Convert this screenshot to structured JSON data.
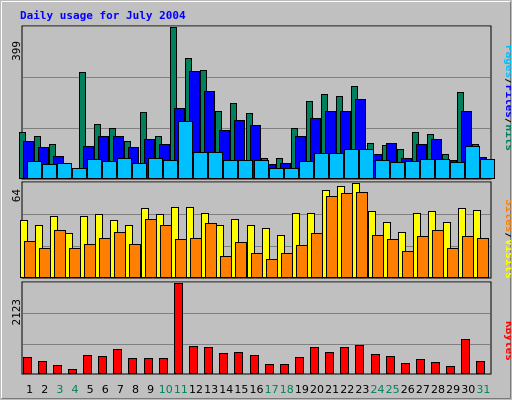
{
  "title": "Daily usage for July 2004",
  "colors": {
    "hits": "#00805c",
    "files": "#0000ff",
    "pages": "#00c0ff",
    "visits": "#ffff00",
    "sites": "#ff8000",
    "kbytes": "#ff0000",
    "weekend_day": "#00805c",
    "weekday_day": "#000000",
    "panel_bg": "#c0c0c0",
    "gridline": "#808080"
  },
  "chart_data": [
    {
      "type": "bar",
      "categories": [
        "1",
        "2",
        "3",
        "4",
        "5",
        "6",
        "7",
        "8",
        "9",
        "10",
        "11",
        "12",
        "13",
        "14",
        "15",
        "16",
        "17",
        "18",
        "19",
        "20",
        "21",
        "22",
        "23",
        "24",
        "25",
        "26",
        "27",
        "28",
        "29",
        "30",
        "31"
      ],
      "weekend_days": [
        3,
        4,
        10,
        11,
        17,
        18,
        24,
        25,
        31
      ],
      "ymax_label": "399",
      "ylim": [
        0,
        399
      ],
      "series": [
        {
          "name": "Hits",
          "values": [
            124,
            113,
            91,
            35,
            281,
            145,
            133,
            101,
            176,
            112,
            399,
            317,
            286,
            178,
            200,
            173,
            56,
            55,
            133,
            205,
            224,
            218,
            244,
            95,
            88,
            78,
            123,
            117,
            65,
            228,
            91
          ]
        },
        {
          "name": "Files",
          "values": [
            99,
            83,
            60,
            30,
            87,
            113,
            112,
            83,
            106,
            92,
            186,
            284,
            232,
            128,
            155,
            142,
            39,
            43,
            113,
            161,
            179,
            178,
            209,
            65,
            94,
            56,
            92,
            104,
            51,
            178,
            57
          ]
        },
        {
          "name": "Pages",
          "values": [
            48,
            40,
            42,
            29,
            53,
            48,
            56,
            43,
            54,
            51,
            152,
            70,
            70,
            49,
            51,
            50,
            30,
            30,
            47,
            68,
            69,
            79,
            80,
            49,
            45,
            46,
            53,
            53,
            44,
            87,
            53
          ]
        }
      ],
      "legend": [
        "Pages",
        "/",
        "Files",
        "/",
        "Hits"
      ]
    },
    {
      "type": "bar",
      "categories": [
        "1",
        "2",
        "3",
        "4",
        "5",
        "6",
        "7",
        "8",
        "9",
        "10",
        "11",
        "12",
        "13",
        "14",
        "15",
        "16",
        "17",
        "18",
        "19",
        "20",
        "21",
        "22",
        "23",
        "24",
        "25",
        "26",
        "27",
        "28",
        "29",
        "30",
        "31"
      ],
      "ymax_label": "64",
      "ylim": [
        0,
        64
      ],
      "series": [
        {
          "name": "Visits",
          "values": [
            39,
            36,
            42,
            30,
            42,
            43,
            39,
            36,
            47,
            43,
            48,
            48,
            44,
            36,
            40,
            36,
            34,
            29,
            44,
            44,
            59,
            62,
            64,
            45,
            38,
            31,
            44,
            45,
            38,
            47,
            46
          ]
        },
        {
          "name": "Sites",
          "values": [
            25,
            20,
            32,
            20,
            23,
            27,
            31,
            23,
            40,
            36,
            26,
            27,
            37,
            15,
            24,
            17,
            13,
            17,
            22,
            30,
            55,
            57,
            58,
            29,
            26,
            18,
            28,
            32,
            20,
            28,
            27
          ]
        }
      ],
      "legend": [
        "Sites",
        "/",
        "Visits"
      ]
    },
    {
      "type": "bar",
      "categories": [
        "1",
        "2",
        "3",
        "4",
        "5",
        "6",
        "7",
        "8",
        "9",
        "10",
        "11",
        "12",
        "13",
        "14",
        "15",
        "16",
        "17",
        "18",
        "19",
        "20",
        "21",
        "22",
        "23",
        "24",
        "25",
        "26",
        "27",
        "28",
        "29",
        "30",
        "31"
      ],
      "ymax_label": "2123",
      "ylim": [
        0,
        2123
      ],
      "series": [
        {
          "name": "KBytes",
          "values": [
            400,
            300,
            200,
            110,
            450,
            420,
            580,
            380,
            380,
            380,
            2123,
            650,
            630,
            500,
            520,
            450,
            230,
            230,
            400,
            620,
            510,
            630,
            680,
            470,
            420,
            250,
            360,
            270,
            190,
            810,
            300
          ]
        }
      ],
      "legend": [
        "KBytes"
      ]
    }
  ]
}
